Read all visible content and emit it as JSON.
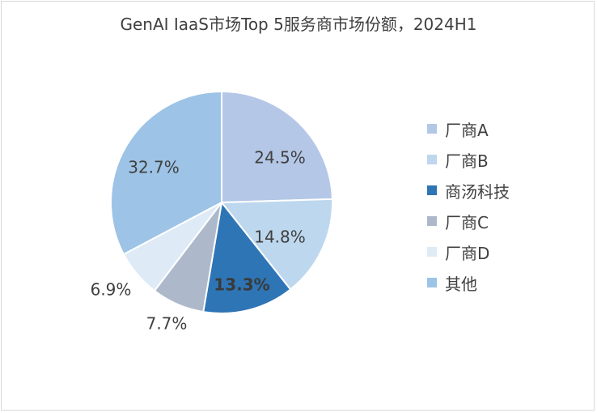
{
  "chart_data": {
    "type": "pie",
    "title": "GenAI IaaS市场Top 5服务商市场份额，2024H1",
    "categories": [
      "厂商A",
      "厂商B",
      "商汤科技",
      "厂商C",
      "厂商D",
      "其他"
    ],
    "values": [
      24.5,
      14.8,
      13.3,
      7.7,
      6.9,
      32.7
    ],
    "labels": [
      "24.5%",
      "14.8%",
      "13.3%",
      "7.7%",
      "6.9%",
      "32.7%"
    ],
    "colors": [
      "#b4c7e7",
      "#bdd7ee",
      "#2e75b6",
      "#adb9ca",
      "#deebf7",
      "#9dc3e6"
    ],
    "highlighted_label": "13.3%",
    "legend_position": "right"
  }
}
